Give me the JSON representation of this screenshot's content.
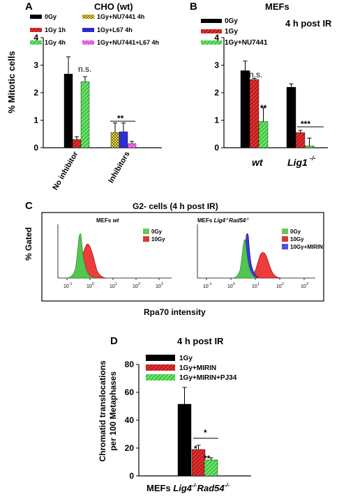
{
  "colors": {
    "black": "#000000",
    "red": "#d42020",
    "green": "#2fbf2f",
    "yellow": "#e8d84a",
    "blue": "#2a2ad0",
    "magenta": "#d838d8",
    "hist_green": "#52c652",
    "hist_red": "#ee3b3b",
    "hist_blue": "#3a3ae0",
    "hist_green_legend": "#72c45a",
    "hist_red_legend": "#d83a3a",
    "hist_blue_legend": "#5050d8"
  },
  "panelA": {
    "letter": "A",
    "title": "CHO (wt)"
  },
  "panelB": {
    "letter": "B",
    "title": "MEFs",
    "subtitle": "4 h post IR"
  },
  "panelC": {
    "letter": "C",
    "title": "G2- cells (4 h post IR)",
    "ylabel": "% Gated",
    "xlabel": "Rpa70 intensity"
  },
  "panelD": {
    "letter": "D",
    "title": "4 h post IR",
    "ylabel_line1": "Chromatid translocations",
    "ylabel_line2": "per 100 Metaphases",
    "xlabel_prefix": "MEFs ",
    "xlabel_lig4": "Lig4",
    "xlabel_rad54": "Rad54"
  },
  "chart_data": [
    {
      "panel": "A",
      "type": "bar",
      "ylabel": "% Mitotic cells",
      "ylim": [
        0,
        4
      ],
      "yticks": [
        "0",
        "1",
        "2",
        "3",
        "4"
      ],
      "categories": [
        "No inhibitor",
        "Inhibitors"
      ],
      "legend": [
        "0Gy",
        "1Gy 1h",
        "1Gy 4h",
        "1Gy+NU7441 4h",
        "1Gy+L67 4h",
        "1Gy+NU7441+L67 4h"
      ],
      "bars": [
        {
          "label": "0Gy",
          "category": "No inhibitor",
          "value": 2.68,
          "error": 0.62,
          "color": "#000000",
          "pattern": "solid"
        },
        {
          "label": "1Gy 1h",
          "category": "No inhibitor",
          "value": 0.3,
          "error": 0.1,
          "color": "#d42020",
          "pattern": "hatch-red"
        },
        {
          "label": "1Gy 4h",
          "category": "No inhibitor",
          "value": 2.4,
          "error": 0.18,
          "color": "#2fbf2f",
          "pattern": "hatch-green"
        },
        {
          "label": "1Gy+NU7441 4h",
          "category": "Inhibitors",
          "value": 0.55,
          "error": 0.35,
          "color": "#e8d84a",
          "pattern": "check-yellow"
        },
        {
          "label": "1Gy+L67 4h",
          "category": "Inhibitors",
          "value": 0.58,
          "error": 0.32,
          "color": "#2a2ad0",
          "pattern": "solid-blue"
        },
        {
          "label": "1Gy+NU7441+L67 4h",
          "category": "Inhibitors",
          "value": 0.15,
          "error": 0.08,
          "color": "#d838d8",
          "pattern": "hatch-magenta"
        }
      ],
      "annotations": [
        "n.s.",
        "**",
        "**"
      ]
    },
    {
      "panel": "B",
      "type": "bar",
      "ylim": [
        0,
        4
      ],
      "yticks": [
        "0",
        "1",
        "2",
        "3",
        "4"
      ],
      "categories": [
        "wt",
        "Lig1"
      ],
      "category_superscript": "-/-",
      "legend": [
        "0Gy",
        "1Gy",
        "1Gy+NU7441"
      ],
      "bars": [
        {
          "label": "0Gy",
          "category": "wt",
          "value": 2.8,
          "error": 0.35,
          "color": "#000000",
          "pattern": "solid"
        },
        {
          "label": "1Gy",
          "category": "wt",
          "value": 2.48,
          "error": 0.04,
          "color": "#d42020",
          "pattern": "hatch-red"
        },
        {
          "label": "1Gy+NU7441",
          "category": "wt",
          "value": 0.95,
          "error": 0.5,
          "color": "#2fbf2f",
          "pattern": "hatch-green"
        },
        {
          "label": "0Gy",
          "category": "Lig1",
          "value": 2.2,
          "error": 0.12,
          "color": "#000000",
          "pattern": "solid"
        },
        {
          "label": "1Gy",
          "category": "Lig1",
          "value": 0.55,
          "error": 0.08,
          "color": "#d42020",
          "pattern": "hatch-red"
        },
        {
          "label": "1Gy+NU7441",
          "category": "Lig1",
          "value": 0.07,
          "error": 0.28,
          "color": "#2fbf2f",
          "pattern": "hatch-green"
        }
      ],
      "annotations": [
        "n.s.",
        "**",
        "***"
      ]
    },
    {
      "panel": "C-left",
      "type": "area",
      "title": "MEFs wt",
      "xscale": "log",
      "xticks": [
        "10",
        "10",
        "10",
        "10",
        "10"
      ],
      "xtick_exponents": [
        "-1",
        "0",
        "1",
        "2",
        "3"
      ],
      "legend": [
        "0Gy",
        "10Gy"
      ]
    },
    {
      "panel": "C-right",
      "type": "area",
      "title": "MEFs Lig4 Rad54",
      "xscale": "log",
      "xticks": [
        "10",
        "10",
        "10",
        "10",
        "10"
      ],
      "xtick_exponents": [
        "-1",
        "0",
        "1",
        "2",
        "3"
      ],
      "legend": [
        "0Gy",
        "10Gy",
        "10Gy+MIRIN"
      ]
    },
    {
      "panel": "D",
      "type": "bar",
      "ylim": [
        0,
        80
      ],
      "yticks": [
        "0",
        "20",
        "40",
        "60",
        "80"
      ],
      "legend": [
        "1Gy",
        "1Gy+MIRIN",
        "1Gy+MIRIN+PJ34"
      ],
      "bars": [
        {
          "label": "1Gy",
          "value": 51.5,
          "error": 12,
          "color": "#000000",
          "pattern": "solid"
        },
        {
          "label": "1Gy+MIRIN",
          "value": 19,
          "error": 3,
          "color": "#d42020",
          "pattern": "hatch-red"
        },
        {
          "label": "1Gy+MIRIN+PJ34",
          "value": 11.5,
          "error": 1.5,
          "color": "#2fbf2f",
          "pattern": "hatch-green"
        }
      ],
      "annotations": [
        "*",
        "*",
        "**"
      ]
    }
  ]
}
